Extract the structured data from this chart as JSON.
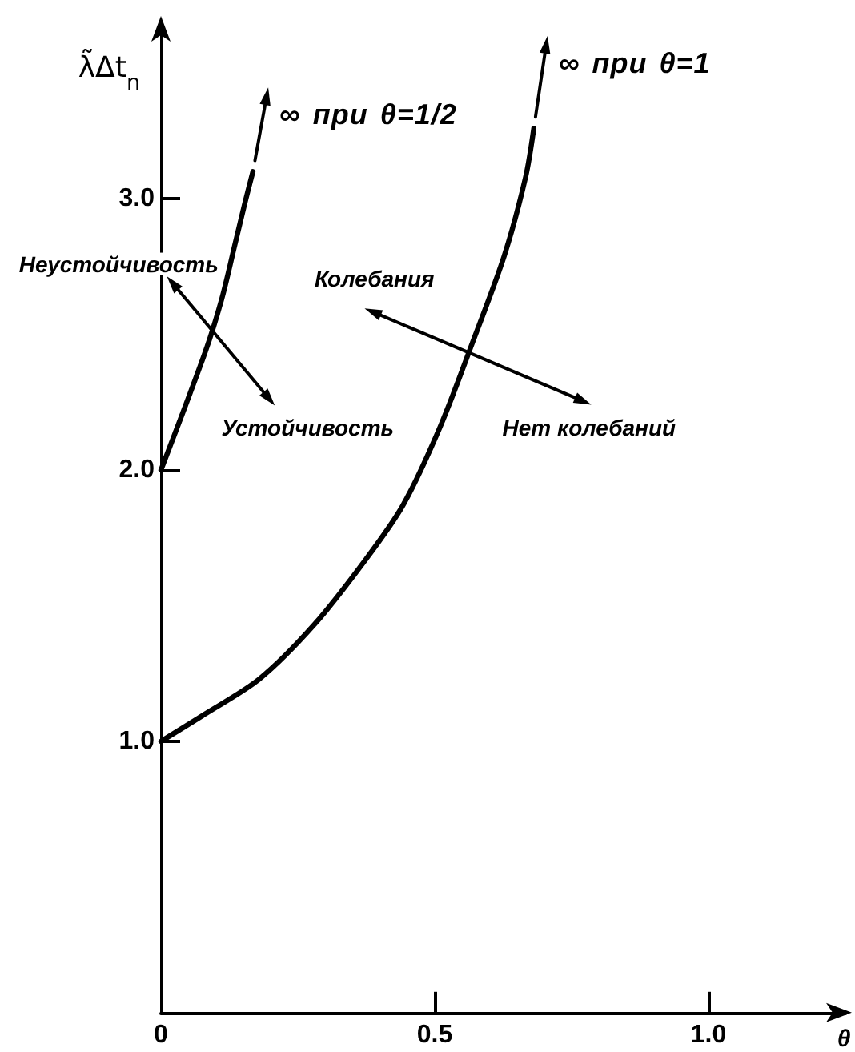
{
  "chart_data": {
    "type": "line",
    "xlabel": "θ",
    "ylabel": "λ̃Δt$_{n}$",
    "xlim": [
      0,
      1.25
    ],
    "ylim": [
      0,
      3.65
    ],
    "xticks": [
      0,
      0.5,
      {
        "value": 1,
        "label": "1.0"
      }
    ],
    "yticks": [
      {
        "value": 1,
        "label": "1.0"
      },
      {
        "value": 2,
        "label": "2.0"
      },
      {
        "value": 3,
        "label": "3.0"
      }
    ],
    "series": [
      {
        "color": "#000000",
        "x": [
          0,
          0.08,
          0.111,
          0.135,
          0.154,
          0.168
        ],
        "values": [
          2.0,
          2.43,
          2.63,
          2.83,
          2.99,
          3.1
        ]
      },
      {
        "color": "#000000",
        "x": [
          0,
          0.08,
          0.18,
          0.28,
          0.374,
          0.442,
          0.51,
          0.569,
          0.627,
          0.666,
          0.681
        ],
        "values": [
          1.0,
          1.1,
          1.23,
          1.43,
          1.67,
          1.87,
          2.16,
          2.47,
          2.79,
          3.08,
          3.26
        ]
      }
    ],
    "annotations": [
      "∞ при θ=1/2",
      "∞ при θ=1",
      "Неустойчивость",
      "Колебания",
      "Устойчивость",
      "Нет колебаний"
    ]
  }
}
